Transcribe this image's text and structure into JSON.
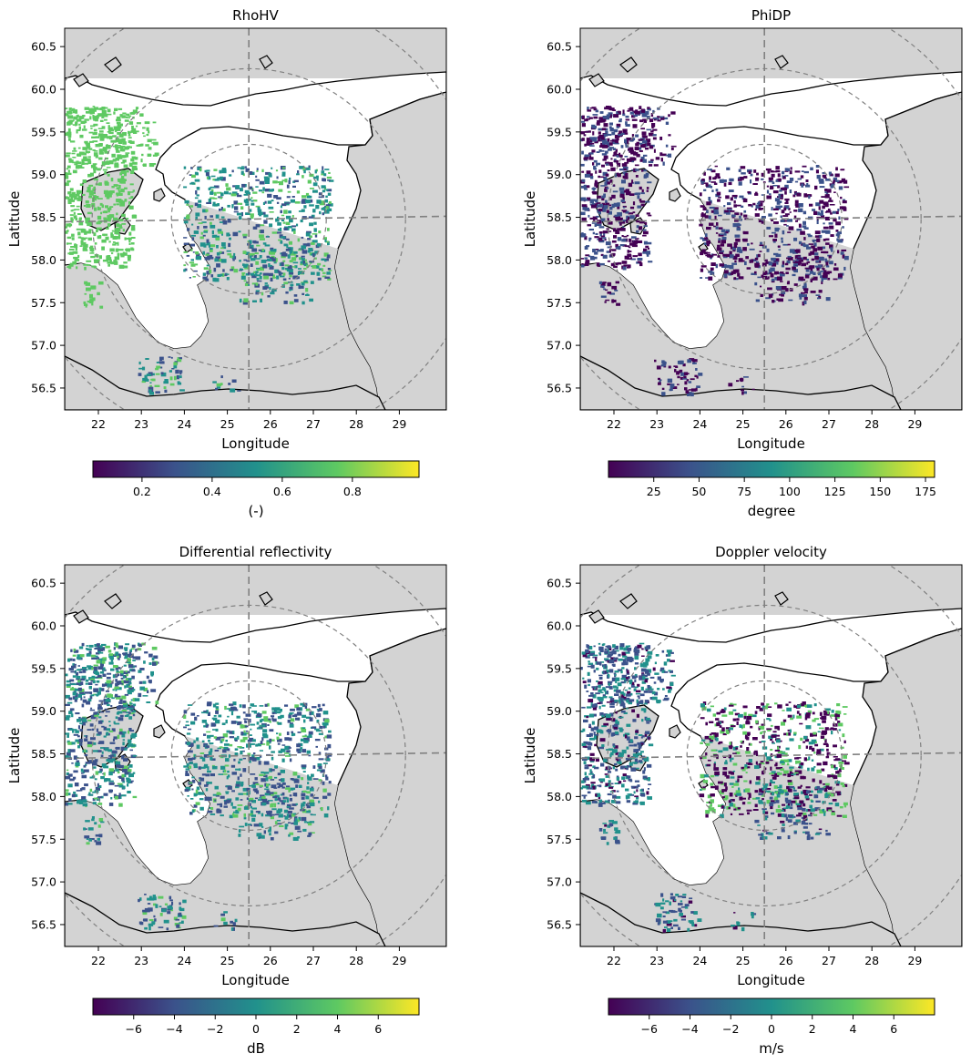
{
  "figure": {
    "colormap_stops": [
      "#440154",
      "#3b528b",
      "#21918c",
      "#5ec962",
      "#fde725"
    ],
    "colors": {
      "land": "#d3d3d3",
      "sea": "#ffffff",
      "coast": "#000000",
      "range_rings": "#808080"
    },
    "x_ticks": [
      "22",
      "23",
      "24",
      "25",
      "26",
      "27",
      "28",
      "29"
    ],
    "y_ticks": [
      "60.5",
      "60.0",
      "59.5",
      "59.0",
      "58.5",
      "58.0",
      "57.5",
      "57.0",
      "56.5"
    ],
    "x_label": "Longitude",
    "y_label": "Latitude",
    "radar_site": {
      "lon": 25.5,
      "lat": 58.48
    },
    "panels": [
      {
        "key": "rhohv",
        "title": "RhoHV",
        "colorbar_label": "(-)",
        "colorbar_ticks": [
          "0.2",
          "0.4",
          "0.6",
          "0.8"
        ],
        "colorbar_range": [
          0.06,
          0.99
        ],
        "colorbar_values": [
          0.2,
          0.4,
          0.6,
          0.8
        ]
      },
      {
        "key": "phidp",
        "title": "PhiDP",
        "colorbar_label": "degree",
        "colorbar_ticks": [
          "25",
          "50",
          "75",
          "100",
          "125",
          "150",
          "175"
        ],
        "colorbar_range": [
          0,
          180
        ],
        "colorbar_values": [
          25,
          50,
          75,
          100,
          125,
          150,
          175
        ]
      },
      {
        "key": "zdr",
        "title": "Differential reflectivity",
        "colorbar_label": "dB",
        "colorbar_ticks": [
          "−6",
          "−4",
          "−2",
          "0",
          "2",
          "4",
          "6"
        ],
        "colorbar_range": [
          -8,
          8
        ],
        "colorbar_values": [
          -6,
          -4,
          -2,
          0,
          2,
          4,
          6
        ]
      },
      {
        "key": "vel",
        "title": "Doppler velocity",
        "colorbar_label": "m/s",
        "colorbar_ticks": [
          "−6",
          "−4",
          "−2",
          "0",
          "2",
          "4",
          "6"
        ],
        "colorbar_range": [
          -8,
          8
        ],
        "colorbar_values": [
          -6,
          -4,
          -2,
          0,
          2,
          4,
          6
        ]
      }
    ]
  }
}
